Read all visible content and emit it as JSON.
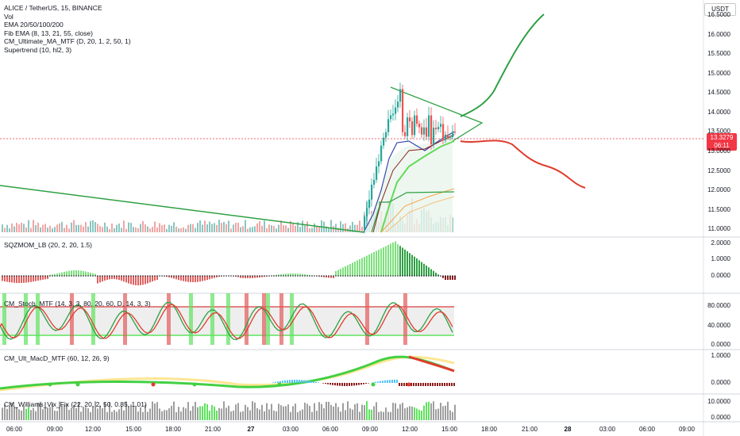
{
  "legend": {
    "symbol_line": "ALICE / TetherUS, 15, BINANCE",
    "items": [
      "Vol",
      "EMA 20/50/100/200",
      "Fib EMA (8, 13, 21, 55, close)",
      "CM_Ultimate_MA_MTF (D, 20, 1, 2, 50, 1)",
      "Supertrend (10, hl2, 3)"
    ]
  },
  "currency_button": "USDT",
  "price_axis": [
    "16.5000",
    "16.0000",
    "15.5000",
    "15.0000",
    "14.5000",
    "14.0000",
    "13.5000",
    "13.0000",
    "12.5000",
    "12.0000",
    "11.5000",
    "11.0000"
  ],
  "last_price": {
    "value": "13.3279",
    "countdown": "06:11"
  },
  "panes": {
    "sqzmom": {
      "label": "SQZMOM_LB (20, 2, 20, 1.5)",
      "axis": [
        "2.0000",
        "1.0000",
        "0.0000"
      ]
    },
    "stoch": {
      "label": "CM_Stoch_MTF (14, 3, 3, 80, 20, 60, D, 14, 3, 3)",
      "axis": [
        "80.0000",
        "40.0000",
        "0.0000"
      ]
    },
    "macd": {
      "label": "CM_Ult_MacD_MTF (60, 12, 26, 9)",
      "axis": [
        "1.0000",
        "0.0000"
      ]
    },
    "vix": {
      "label": "CM_Williams_Vix_Fix (22, 20, 2, 50, 0.85, 1.01)",
      "axis": [
        "10.0000",
        "0.0000"
      ]
    }
  },
  "time_axis": [
    {
      "label": "06:00",
      "bold": false
    },
    {
      "label": "09:00",
      "bold": false
    },
    {
      "label": "12:00",
      "bold": false
    },
    {
      "label": "15:00",
      "bold": false
    },
    {
      "label": "18:00",
      "bold": false
    },
    {
      "label": "21:00",
      "bold": false
    },
    {
      "label": "27",
      "bold": true
    },
    {
      "label": "03:00",
      "bold": false
    },
    {
      "label": "06:00",
      "bold": false
    },
    {
      "label": "09:00",
      "bold": false
    },
    {
      "label": "12:00",
      "bold": false
    },
    {
      "label": "15:00",
      "bold": false
    },
    {
      "label": "18:00",
      "bold": false
    },
    {
      "label": "21:00",
      "bold": false
    },
    {
      "label": "28",
      "bold": true
    },
    {
      "label": "03:00",
      "bold": false
    },
    {
      "label": "06:00",
      "bold": false
    },
    {
      "label": "09:00",
      "bold": false
    }
  ],
  "colors": {
    "up": "#26a69a",
    "down": "#ef5350",
    "green_line": "#2ea043",
    "red_line": "#e03c2d",
    "stoch_green": "#5ee35e",
    "stoch_red": "#e35a5a",
    "vol_up": "#8bc6c0",
    "vol_down": "#f3a5a5"
  }
}
